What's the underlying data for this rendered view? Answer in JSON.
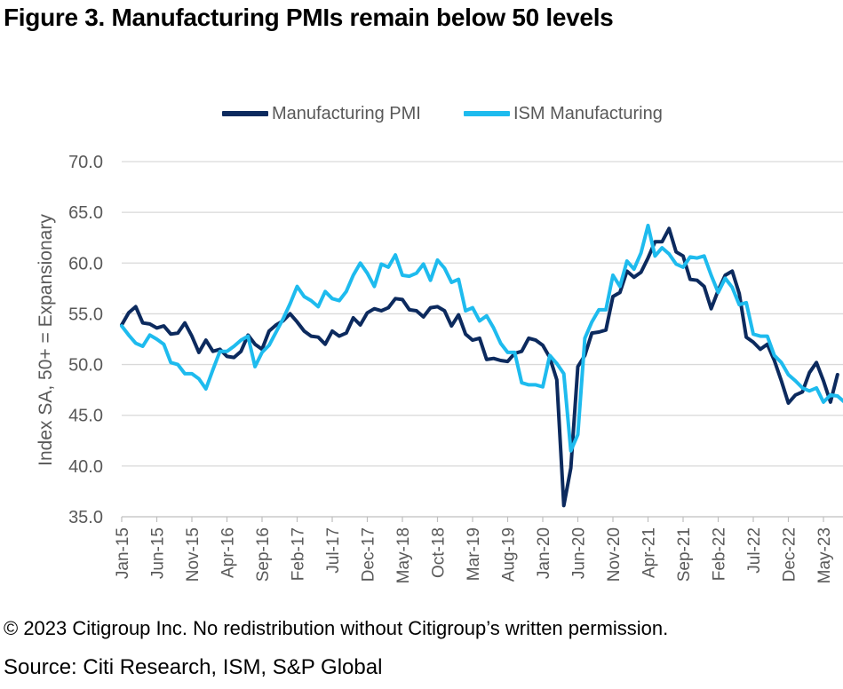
{
  "title": "Figure 3. Manufacturing PMIs remain below 50 levels",
  "footer": {
    "copyright": "© 2023 Citigroup Inc. No redistribution without Citigroup’s written permission.",
    "source": "Source: Citi Research, ISM, S&P Global"
  },
  "chart_data": {
    "type": "line",
    "title": "Figure 3. Manufacturing PMIs remain below 50 levels",
    "xlabel": "",
    "ylabel": "Index SA, 50+ = Expansionary",
    "ylim": [
      35,
      70
    ],
    "yticks": [
      "35.0",
      "40.0",
      "45.0",
      "50.0",
      "55.0",
      "60.0",
      "65.0",
      "70.0"
    ],
    "grid": true,
    "legend_position": "top-center",
    "x_start": "Jan-15",
    "x_tick_labels": [
      "Jan-15",
      "Jun-15",
      "Nov-15",
      "Apr-16",
      "Sep-16",
      "Feb-17",
      "Jul-17",
      "Dec-17",
      "May-18",
      "Oct-18",
      "Mar-19",
      "Aug-19",
      "Jan-20",
      "Jun-20",
      "Nov-20",
      "Apr-21",
      "Sep-21",
      "Feb-22",
      "Jul-22",
      "Dec-22",
      "May-23"
    ],
    "series": [
      {
        "name": "Manufacturing PMI",
        "color": "#0c2a5e",
        "values": [
          53.9,
          55.1,
          55.7,
          54.1,
          54.0,
          53.6,
          53.8,
          53.0,
          53.1,
          54.1,
          52.8,
          51.2,
          52.4,
          51.3,
          51.5,
          50.8,
          50.7,
          51.3,
          52.9,
          52.0,
          51.5,
          53.3,
          53.9,
          54.3,
          55.0,
          54.2,
          53.3,
          52.8,
          52.7,
          52.0,
          53.3,
          52.8,
          53.1,
          54.6,
          53.9,
          55.1,
          55.5,
          55.3,
          55.6,
          56.5,
          56.4,
          55.4,
          55.3,
          54.7,
          55.6,
          55.7,
          55.3,
          53.8,
          54.9,
          53.0,
          52.4,
          52.6,
          50.5,
          50.6,
          50.4,
          50.3,
          51.1,
          51.3,
          52.6,
          52.4,
          51.9,
          50.7,
          48.5,
          36.1,
          39.8,
          49.8,
          50.9,
          53.1,
          53.2,
          53.4,
          56.7,
          57.1,
          59.2,
          58.6,
          59.1,
          60.5,
          62.1,
          62.1,
          63.4,
          61.1,
          60.7,
          58.4,
          58.3,
          57.7,
          55.5,
          57.3,
          58.8,
          59.2,
          57.0,
          52.7,
          52.2,
          51.5,
          52.0,
          50.4,
          48.4,
          46.2,
          47.0,
          47.3,
          49.2,
          50.2,
          48.4,
          46.3,
          49.0
        ]
      },
      {
        "name": "ISM Manufacturing",
        "color": "#1ebbee",
        "values": [
          53.8,
          52.9,
          52.1,
          51.8,
          52.9,
          52.5,
          52.0,
          50.2,
          50.0,
          49.1,
          49.1,
          48.6,
          47.6,
          49.5,
          51.3,
          51.3,
          51.8,
          52.4,
          52.8,
          49.8,
          51.2,
          51.9,
          53.2,
          54.5,
          56.0,
          57.7,
          56.7,
          56.3,
          55.7,
          57.2,
          56.5,
          56.3,
          57.2,
          58.8,
          60.0,
          59.0,
          57.7,
          59.9,
          59.6,
          60.8,
          58.8,
          58.7,
          59.0,
          59.9,
          58.3,
          60.3,
          59.5,
          58.1,
          58.4,
          55.3,
          55.6,
          54.3,
          54.8,
          53.6,
          52.1,
          51.2,
          51.2,
          48.2,
          48.0,
          48.0,
          47.8,
          50.9,
          50.1,
          49.1,
          41.5,
          43.1,
          52.6,
          54.2,
          55.4,
          55.4,
          58.8,
          57.7,
          60.2,
          59.4,
          61.0,
          63.7,
          60.7,
          61.5,
          60.9,
          59.9,
          59.6,
          60.6,
          60.5,
          60.7,
          58.8,
          57.1,
          58.5,
          57.6,
          55.9,
          56.1,
          53.0,
          52.8,
          52.8,
          50.9,
          50.2,
          49.0,
          48.4,
          47.7,
          47.4,
          47.7,
          46.3,
          47.0,
          46.9,
          46.3,
          46.0
        ]
      }
    ]
  }
}
